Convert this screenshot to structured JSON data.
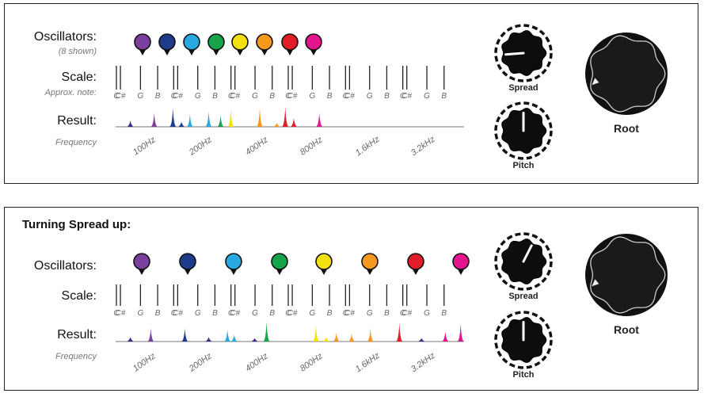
{
  "labels": {
    "oscillators": "Oscillators:",
    "shown": "(8 shown)",
    "scale": "Scale:",
    "approx_note": "Approx. note:",
    "result": "Result:",
    "frequency": "Frequency"
  },
  "knobs": {
    "spread": "Spread",
    "pitch": "Pitch",
    "root": "Root"
  },
  "freq_labels": [
    "100Hz",
    "200Hz",
    "400Hz",
    "800Hz",
    "1.6kHz",
    "3.2kHz"
  ],
  "note_names": [
    "C",
    "C#",
    "G",
    "B"
  ],
  "panel2": {
    "heading": "Turning Spread up:"
  },
  "oscillator_colors": [
    "#7b3f9e",
    "#1e3a8a",
    "#29a9e1",
    "#16a34a",
    "#f2e10f",
    "#f39a1f",
    "#e11d2a",
    "#e4148c"
  ],
  "scale_octaves": 6,
  "panel1": {
    "spread_value": 0.15,
    "pitch_value": 0.5,
    "root_value": 0.1,
    "peaks": [
      {
        "x": 0.02,
        "h": 0.25,
        "c": 8
      },
      {
        "x": 0.09,
        "h": 0.55,
        "c": 0
      },
      {
        "x": 0.145,
        "h": 0.75,
        "c": 1
      },
      {
        "x": 0.17,
        "h": 0.2,
        "c": 1
      },
      {
        "x": 0.195,
        "h": 0.5,
        "c": 2
      },
      {
        "x": 0.25,
        "h": 0.6,
        "c": 2
      },
      {
        "x": 0.285,
        "h": 0.45,
        "c": 3
      },
      {
        "x": 0.315,
        "h": 0.7,
        "c": 4
      },
      {
        "x": 0.4,
        "h": 0.75,
        "c": 5
      },
      {
        "x": 0.45,
        "h": 0.15,
        "c": 5
      },
      {
        "x": 0.475,
        "h": 0.8,
        "c": 6
      },
      {
        "x": 0.5,
        "h": 0.35,
        "c": 6
      },
      {
        "x": 0.575,
        "h": 0.55,
        "c": 7
      }
    ]
  },
  "panel2_data": {
    "spread_value": 0.6,
    "pitch_value": 0.5,
    "root_value": 0.1,
    "peaks": [
      {
        "x": 0.02,
        "h": 0.2,
        "c": 8
      },
      {
        "x": 0.08,
        "h": 0.6,
        "c": 0
      },
      {
        "x": 0.18,
        "h": 0.6,
        "c": 1
      },
      {
        "x": 0.25,
        "h": 0.2,
        "c": 8
      },
      {
        "x": 0.305,
        "h": 0.55,
        "c": 2
      },
      {
        "x": 0.325,
        "h": 0.3,
        "c": 2
      },
      {
        "x": 0.385,
        "h": 0.15,
        "c": 8
      },
      {
        "x": 0.42,
        "h": 0.9,
        "c": 3
      },
      {
        "x": 0.565,
        "h": 0.75,
        "c": 4
      },
      {
        "x": 0.595,
        "h": 0.2,
        "c": 4
      },
      {
        "x": 0.625,
        "h": 0.4,
        "c": 5
      },
      {
        "x": 0.67,
        "h": 0.35,
        "c": 5
      },
      {
        "x": 0.725,
        "h": 0.6,
        "c": 5
      },
      {
        "x": 0.81,
        "h": 0.85,
        "c": 6
      },
      {
        "x": 0.875,
        "h": 0.15,
        "c": 8
      },
      {
        "x": 0.945,
        "h": 0.45,
        "c": 7
      },
      {
        "x": 0.99,
        "h": 0.8,
        "c": 7
      }
    ]
  }
}
